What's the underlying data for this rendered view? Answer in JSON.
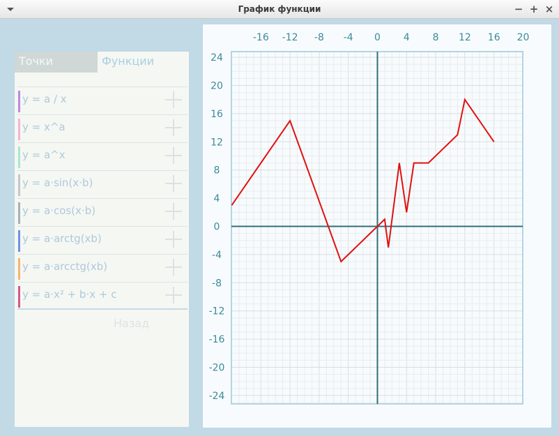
{
  "window": {
    "title": "График функции",
    "controls": {
      "minimize": "−",
      "maximize": "+",
      "close": "×"
    }
  },
  "tabs": [
    {
      "label": "Точки"
    },
    {
      "label": "Функции"
    }
  ],
  "functions": [
    {
      "label": "y = a / x",
      "color": "#b98be0"
    },
    {
      "label": " y = x^a",
      "color": "#f3b3d6"
    },
    {
      "label": "y = a^x",
      "color": "#a8e8cf"
    },
    {
      "label": "y = a·sin(x·b)",
      "color": "#c4c7cc"
    },
    {
      "label": "y = a·cos(x·b)",
      "color": "#a6b1b8"
    },
    {
      "label": "y = a·arctg(xb)",
      "color": "#6f92e3"
    },
    {
      "label": "y = a·arcctg(xb)",
      "color": "#f6b66a"
    },
    {
      "label": "y = a·x² + b·x + c",
      "color": "#cf5a8c"
    }
  ],
  "back_label": "Назад",
  "colors": {
    "axis": "#2f6f7b",
    "line": "#e01010",
    "tick_text": "#3b8a9a",
    "grid_minor": "#e7ecec",
    "grid_major": "#d7dede",
    "frame": "#b3d4e3"
  },
  "chart_data": {
    "type": "line",
    "xlim": [
      -20,
      20
    ],
    "ylim": [
      -25,
      25
    ],
    "x_ticks": [
      -16,
      -12,
      -8,
      -4,
      0,
      4,
      8,
      12,
      16,
      20
    ],
    "y_ticks": [
      24,
      20,
      16,
      12,
      8,
      4,
      0,
      -4,
      -8,
      -12,
      -16,
      -20,
      -24
    ],
    "grid": true,
    "series": [
      {
        "x": [
          -20,
          -12,
          -5,
          1,
          1.5,
          3,
          4,
          5,
          7,
          11,
          12,
          16
        ],
        "y": [
          3,
          15,
          -5,
          1,
          -3,
          9,
          2,
          9,
          9,
          13,
          18,
          12
        ]
      }
    ]
  }
}
